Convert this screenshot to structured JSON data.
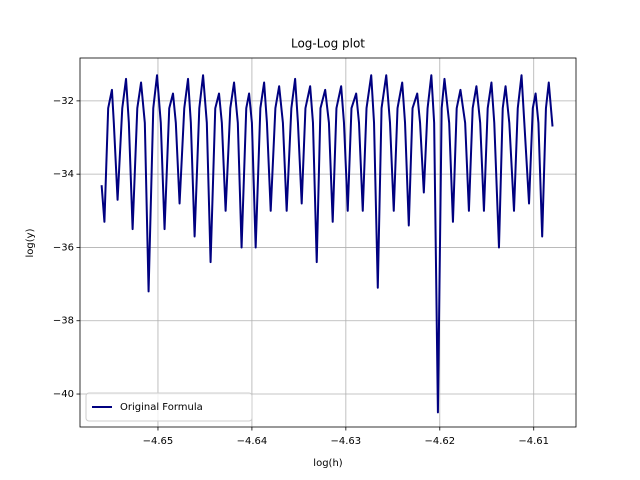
{
  "chart_data": {
    "type": "line",
    "title": "Log-Log plot",
    "x_label": "log(h)",
    "y_label": "log(y)",
    "x": [
      -4.656,
      -4.6557,
      -4.6553,
      -4.6549,
      -4.6547,
      -4.6543,
      -4.6538,
      -4.6534,
      -4.6531,
      -4.6527,
      -4.6522,
      -4.6518,
      -4.6514,
      -4.651,
      -4.6505,
      -4.6501,
      -4.6497,
      -4.6493,
      -4.6488,
      -4.6484,
      -4.6481,
      -4.6477,
      -4.6472,
      -4.6468,
      -4.6465,
      -4.6461,
      -4.6456,
      -4.6452,
      -4.6448,
      -4.6444,
      -4.6439,
      -4.6435,
      -4.6432,
      -4.6428,
      -4.6423,
      -4.6419,
      -4.6415,
      -4.6411,
      -4.6406,
      -4.6403,
      -4.64,
      -4.6396,
      -4.6391,
      -4.6387,
      -4.6384,
      -4.638,
      -4.6375,
      -4.6371,
      -4.6367,
      -4.6363,
      -4.6358,
      -4.6354,
      -4.6351,
      -4.6347,
      -4.6343,
      -4.6338,
      -4.6335,
      -4.6331,
      -4.6327,
      -4.6322,
      -4.6318,
      -4.6314,
      -4.631,
      -4.6305,
      -4.6302,
      -4.6298,
      -4.6294,
      -4.6289,
      -4.6286,
      -4.6282,
      -4.6278,
      -4.6273,
      -4.627,
      -4.6266,
      -4.6262,
      -4.6257,
      -4.6253,
      -4.6249,
      -4.6245,
      -4.624,
      -4.6237,
      -4.6233,
      -4.6229,
      -4.6224,
      -4.6221,
      -4.6217,
      -4.6213,
      -4.6209,
      -4.6206,
      -4.6202,
      -4.6198,
      -4.6195,
      -4.619,
      -4.6186,
      -4.6182,
      -4.6178,
      -4.6173,
      -4.6169,
      -4.6165,
      -4.6161,
      -4.6157,
      -4.6153,
      -4.6149,
      -4.6145,
      -4.6142,
      -4.6137,
      -4.6133,
      -4.613,
      -4.6126,
      -4.6121,
      -4.6117,
      -4.6113,
      -4.611,
      -4.6105,
      -4.6101,
      -4.6098,
      -4.6095,
      -4.6091,
      -4.6087,
      -4.6084,
      -4.608
    ],
    "series": [
      {
        "name": "Original Formula",
        "color": "#000080",
        "values": [
          -34.3,
          -35.3,
          -32.2,
          -31.7,
          -32.6,
          -34.7,
          -32.2,
          -31.4,
          -32.6,
          -35.5,
          -32.2,
          -31.5,
          -32.6,
          -37.2,
          -32.2,
          -31.3,
          -32.6,
          -35.5,
          -32.2,
          -31.8,
          -32.6,
          -34.8,
          -32.2,
          -31.4,
          -32.6,
          -35.7,
          -32.2,
          -31.3,
          -32.6,
          -36.4,
          -32.2,
          -31.8,
          -32.6,
          -35.0,
          -32.2,
          -31.5,
          -32.6,
          -36.0,
          -32.2,
          -31.8,
          -32.6,
          -36.0,
          -32.2,
          -31.5,
          -32.6,
          -35.0,
          -32.2,
          -31.6,
          -32.6,
          -35.0,
          -32.2,
          -31.4,
          -32.6,
          -34.8,
          -32.2,
          -31.6,
          -32.6,
          -36.4,
          -32.2,
          -31.7,
          -32.6,
          -35.3,
          -32.2,
          -31.6,
          -32.6,
          -35.0,
          -32.2,
          -31.8,
          -32.6,
          -35.0,
          -32.2,
          -31.3,
          -32.6,
          -37.1,
          -32.2,
          -31.3,
          -32.6,
          -35.0,
          -32.2,
          -31.5,
          -32.6,
          -35.4,
          -32.2,
          -31.8,
          -32.6,
          -34.5,
          -32.2,
          -31.3,
          -32.6,
          -40.5,
          -32.2,
          -31.4,
          -32.6,
          -35.3,
          -32.2,
          -31.7,
          -32.6,
          -35.0,
          -32.2,
          -31.6,
          -32.6,
          -35.0,
          -32.2,
          -31.5,
          -32.6,
          -36.0,
          -32.2,
          -31.6,
          -32.6,
          -35.0,
          -32.2,
          -31.3,
          -32.6,
          -34.8,
          -32.2,
          -31.8,
          -32.6,
          -35.7,
          -32.2,
          -31.5,
          -32.7
        ]
      }
    ],
    "xlim": [
      -4.6583,
      -4.6055
    ],
    "ylim": [
      -40.9,
      -30.83
    ],
    "xticks": [
      {
        "value": -4.65,
        "label": "−4.65"
      },
      {
        "value": -4.64,
        "label": "−4.64"
      },
      {
        "value": -4.63,
        "label": "−4.63"
      },
      {
        "value": -4.62,
        "label": "−4.62"
      },
      {
        "value": -4.61,
        "label": "−4.61"
      }
    ],
    "yticks": [
      {
        "value": -40,
        "label": "−40"
      },
      {
        "value": -38,
        "label": "−38"
      },
      {
        "value": -36,
        "label": "−36"
      },
      {
        "value": -34,
        "label": "−34"
      },
      {
        "value": -32,
        "label": "−32"
      }
    ],
    "grid": true,
    "legend": "lower left"
  }
}
